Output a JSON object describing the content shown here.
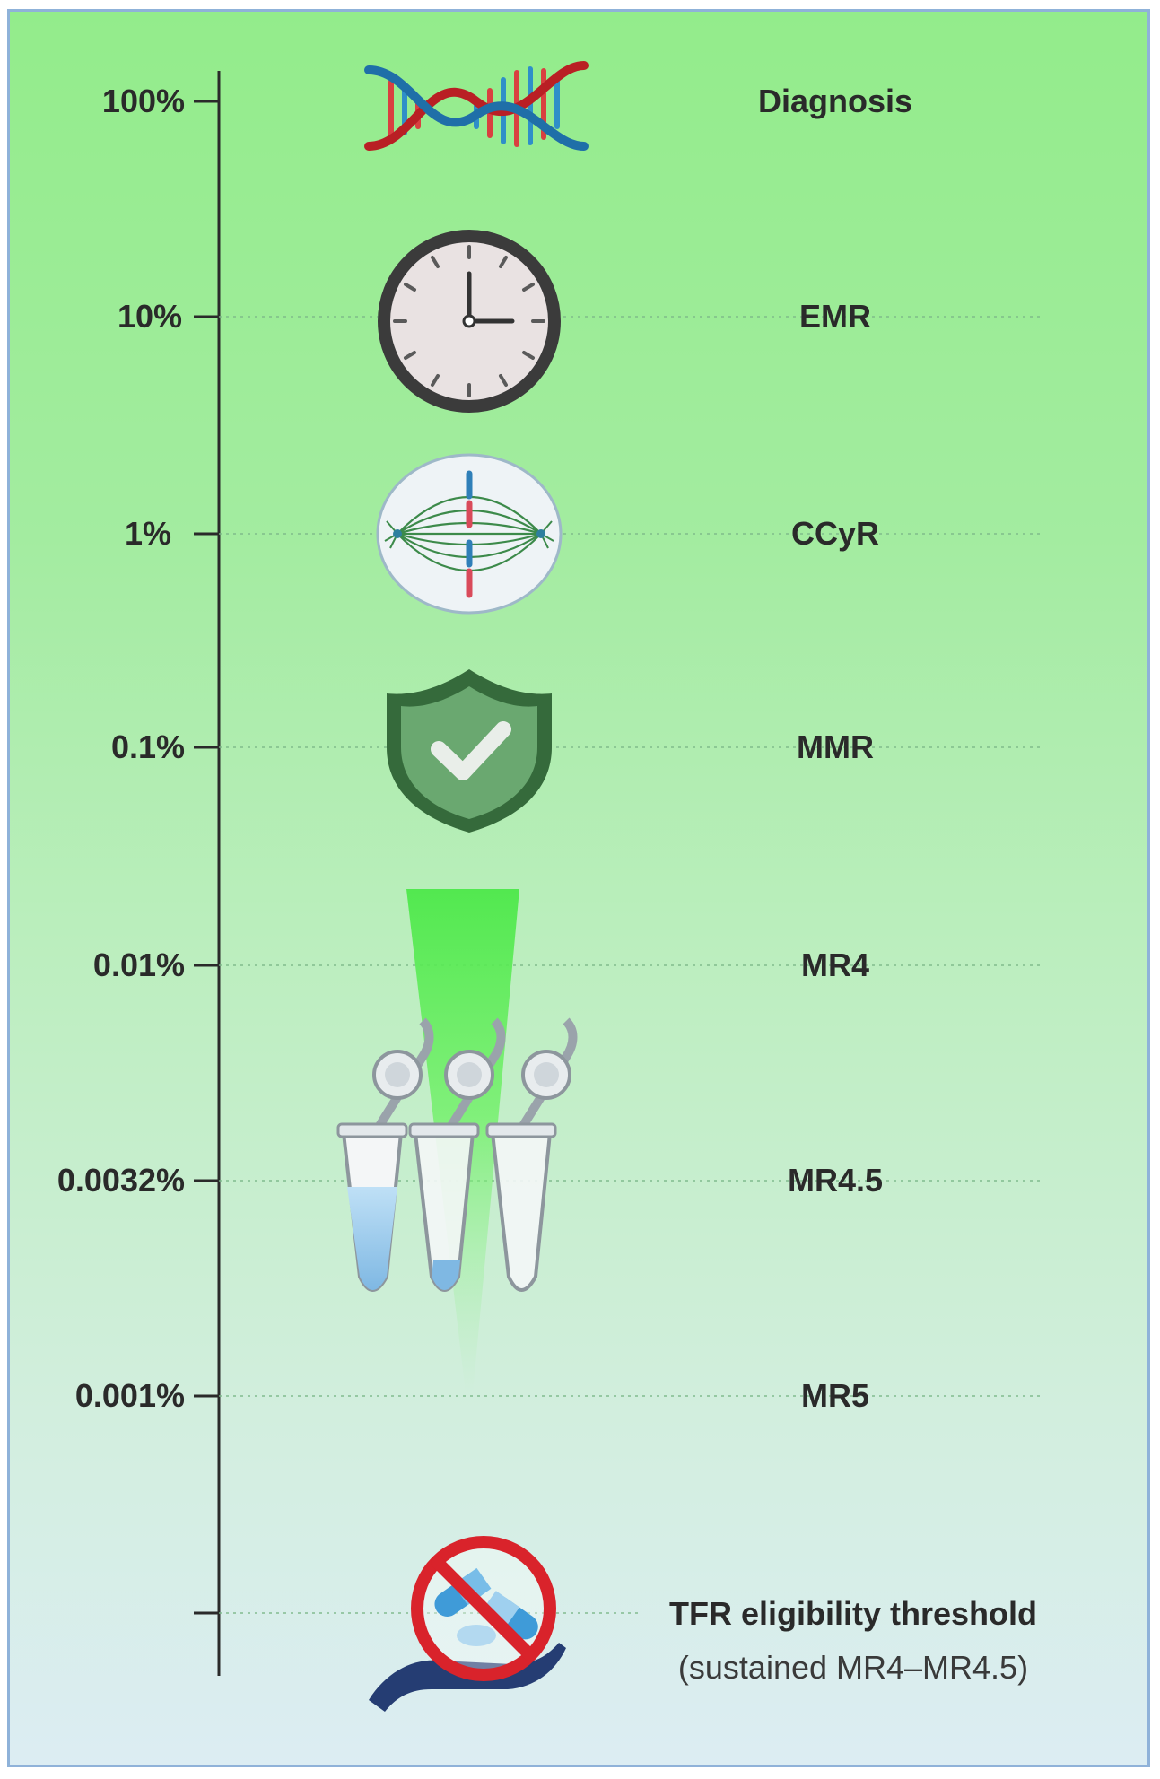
{
  "scale": {
    "levels": [
      {
        "percent": "100%",
        "stage": "Diagnosis",
        "icon": "dna-icon"
      },
      {
        "percent": "10%",
        "stage": "EMR",
        "icon": "clock-icon"
      },
      {
        "percent": "1%",
        "stage": "CCyR",
        "icon": "cell-division-icon"
      },
      {
        "percent": "0.1%",
        "stage": "MMR",
        "icon": "shield-check-icon"
      },
      {
        "percent": "0.01%",
        "stage": "MR4",
        "icon": "light-beam-icon"
      },
      {
        "percent": "0.0032%",
        "stage": "MR4.5",
        "icon": "pcr-tubes-icon"
      },
      {
        "percent": "0.001%",
        "stage": "MR5",
        "icon": ""
      }
    ]
  },
  "tfr": {
    "title": "TFR eligibility threshold",
    "subtitle": "(sustained MR4–MR4.5)",
    "icon": "no-pills-hand-icon"
  },
  "colors": {
    "background_top": "#93ec8b",
    "background_bottom": "#dcedf3",
    "border": "#8fb2d9",
    "text": "#2a2a2a",
    "shield": "#4f8a55",
    "prohibition": "#d9232b"
  }
}
